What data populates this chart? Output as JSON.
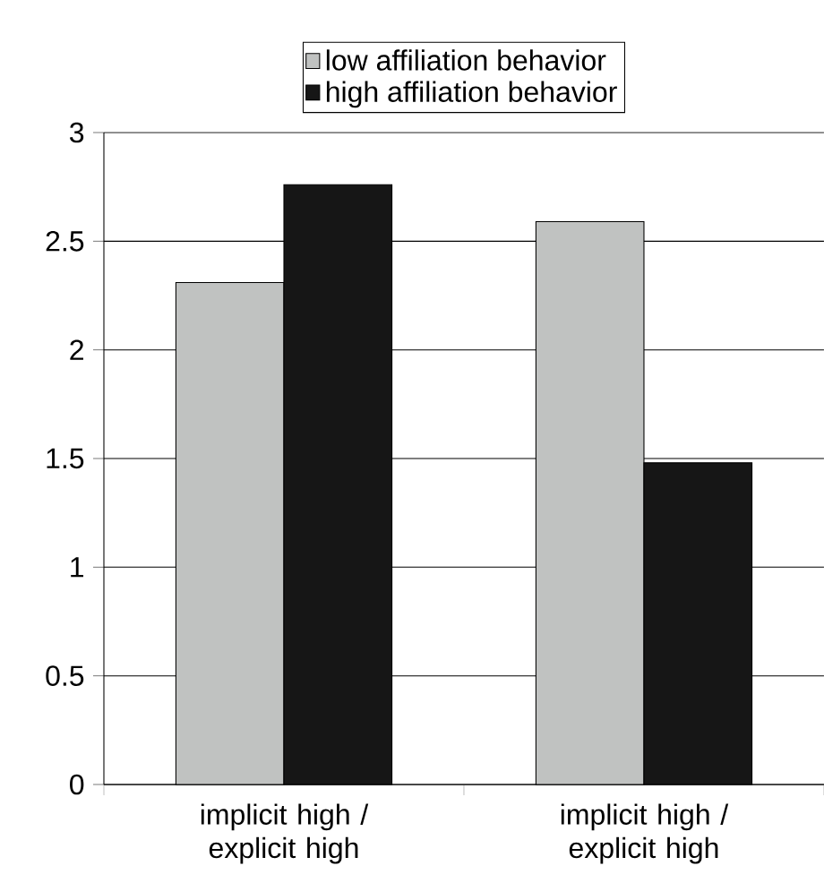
{
  "chart_data": {
    "type": "bar",
    "categories": [
      "implicit high / explicit high",
      "implicit high / explicit high"
    ],
    "series": [
      {
        "name": "low affiliation behavior",
        "color": "#c0c2c1",
        "values": [
          2.31,
          2.59
        ]
      },
      {
        "name": "high affiliation behavior",
        "color": "#161616",
        "values": [
          2.76,
          1.48
        ]
      }
    ],
    "ylim": [
      0,
      3
    ],
    "yticks": [
      0,
      0.5,
      1,
      1.5,
      2,
      2.5,
      3
    ],
    "grid": "y",
    "legend": "top"
  }
}
